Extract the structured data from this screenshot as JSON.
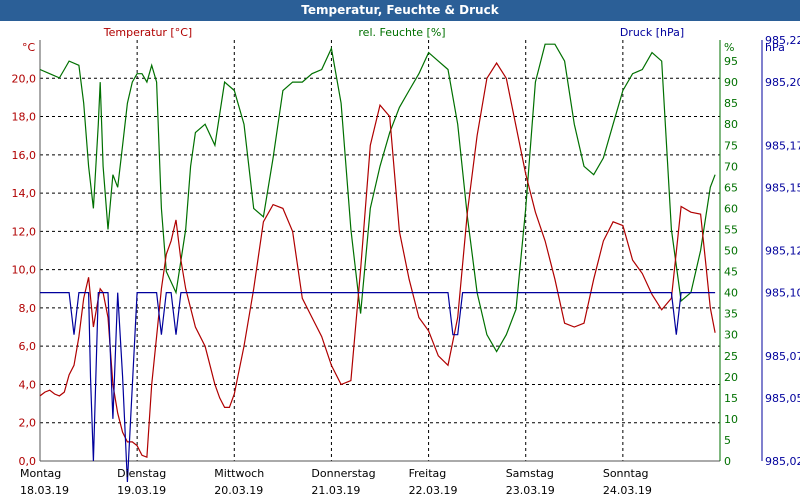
{
  "window": {
    "title": "Temperatur, Feuchte & Druck"
  },
  "chart_data": {
    "type": "line",
    "series_titles": {
      "temperature": "Temperatur [°C]",
      "humidity": "rel. Feuchte [%]",
      "pressure": "Druck [hPa]"
    },
    "units": {
      "left": "°C",
      "right1": "%",
      "right2": "hPa"
    },
    "colors": {
      "temperature": "#b00000",
      "humidity": "#007000",
      "pressure": "#00009c",
      "grid": "#000000"
    },
    "grid": true,
    "y_left": {
      "ticks": [
        "0,0",
        "2,0",
        "4,0",
        "6,0",
        "8,0",
        "10,0",
        "12,0",
        "14,0",
        "16,0",
        "18,0",
        "20,0"
      ],
      "range": [
        0,
        22
      ]
    },
    "y_right1": {
      "ticks": [
        "0",
        "5",
        "10",
        "15",
        "20",
        "25",
        "30",
        "35",
        "40",
        "45",
        "50",
        "55",
        "60",
        "65",
        "70",
        "75",
        "80",
        "85",
        "90",
        "95"
      ],
      "range": [
        0,
        100
      ]
    },
    "y_right2": {
      "ticks": [
        "985,02",
        "985,05",
        "985,07",
        "985,10",
        "985,12",
        "985,15",
        "985,17",
        "985,20",
        "985,22"
      ],
      "range": [
        985.02,
        985.22
      ]
    },
    "x_days": [
      {
        "day": "Montag",
        "date": "18.03.19"
      },
      {
        "day": "Dienstag",
        "date": "19.03.19"
      },
      {
        "day": "Mittwoch",
        "date": "20.03.19"
      },
      {
        "day": "Donnerstag",
        "date": "21.03.19"
      },
      {
        "day": "Freitag",
        "date": "22.03.19"
      },
      {
        "day": "Samstag",
        "date": "23.03.19"
      },
      {
        "day": "Sonntag",
        "date": "24.03.19"
      }
    ],
    "x_range_days": [
      0,
      7
    ],
    "temperature": {
      "x": [
        0,
        0.05,
        0.1,
        0.15,
        0.2,
        0.25,
        0.3,
        0.35,
        0.4,
        0.45,
        0.5,
        0.55,
        0.6,
        0.62,
        0.65,
        0.7,
        0.75,
        0.8,
        0.85,
        0.9,
        0.95,
        1.0,
        1.05,
        1.1,
        1.15,
        1.2,
        1.25,
        1.3,
        1.35,
        1.4,
        1.45,
        1.5,
        1.6,
        1.7,
        1.75,
        1.8,
        1.85,
        1.9,
        1.95,
        2.0,
        2.1,
        2.2,
        2.3,
        2.4,
        2.5,
        2.6,
        2.7,
        2.8,
        2.9,
        3.0,
        3.1,
        3.2,
        3.3,
        3.4,
        3.5,
        3.6,
        3.7,
        3.8,
        3.9,
        4.0,
        4.1,
        4.2,
        4.3,
        4.4,
        4.5,
        4.6,
        4.7,
        4.8,
        4.9,
        5.0,
        5.1,
        5.2,
        5.3,
        5.4,
        5.5,
        5.6,
        5.7,
        5.8,
        5.9,
        6.0,
        6.1,
        6.2,
        6.3,
        6.4,
        6.5,
        6.6,
        6.7,
        6.8,
        6.85,
        6.9,
        6.95
      ],
      "values": [
        3.4,
        3.6,
        3.7,
        3.5,
        3.4,
        3.6,
        4.5,
        5.0,
        6.5,
        8.5,
        9.6,
        7.0,
        8.5,
        9.0,
        8.8,
        7.5,
        4.0,
        2.5,
        1.5,
        1.0,
        1.0,
        0.8,
        0.3,
        0.2,
        4.0,
        6.5,
        9.0,
        10.8,
        11.5,
        12.6,
        10.5,
        9.0,
        7.0,
        6.0,
        5.0,
        4.0,
        3.3,
        2.8,
        2.8,
        3.5,
        6.0,
        9.0,
        12.5,
        13.4,
        13.2,
        12.0,
        8.5,
        7.5,
        6.5,
        5.0,
        4.0,
        4.2,
        10.0,
        16.5,
        18.6,
        18.0,
        12.0,
        9.5,
        7.5,
        6.8,
        5.5,
        5.0,
        7.5,
        13.0,
        17.0,
        20.0,
        20.8,
        20.0,
        17.5,
        15.0,
        13.0,
        11.5,
        9.5,
        7.2,
        7.0,
        7.2,
        9.5,
        11.5,
        12.5,
        12.3,
        10.5,
        9.8,
        8.7,
        7.9,
        8.5,
        13.3,
        13.0,
        12.9,
        10.5,
        8.0,
        6.7
      ]
    },
    "humidity": {
      "x": [
        0,
        0.1,
        0.2,
        0.25,
        0.3,
        0.4,
        0.45,
        0.5,
        0.55,
        0.6,
        0.62,
        0.65,
        0.7,
        0.75,
        0.8,
        0.85,
        0.9,
        0.95,
        1.0,
        1.05,
        1.1,
        1.15,
        1.2,
        1.25,
        1.3,
        1.4,
        1.5,
        1.55,
        1.6,
        1.7,
        1.8,
        1.9,
        2.0,
        2.1,
        2.2,
        2.3,
        2.4,
        2.5,
        2.6,
        2.7,
        2.8,
        2.9,
        3.0,
        3.1,
        3.2,
        3.3,
        3.4,
        3.5,
        3.6,
        3.7,
        3.8,
        3.9,
        4.0,
        4.1,
        4.2,
        4.3,
        4.4,
        4.5,
        4.6,
        4.7,
        4.8,
        4.9,
        5.0,
        5.1,
        5.2,
        5.3,
        5.4,
        5.5,
        5.6,
        5.7,
        5.8,
        5.9,
        6.0,
        6.1,
        6.2,
        6.3,
        6.4,
        6.5,
        6.6,
        6.7,
        6.8,
        6.9,
        6.95
      ],
      "values": [
        93,
        92,
        91,
        93,
        95,
        94,
        85,
        70,
        60,
        80,
        90,
        70,
        55,
        68,
        65,
        75,
        85,
        90,
        92,
        92,
        90,
        94,
        90,
        60,
        45,
        40,
        55,
        70,
        78,
        80,
        75,
        90,
        88,
        80,
        60,
        58,
        72,
        88,
        90,
        90,
        92,
        93,
        98,
        85,
        55,
        35,
        60,
        70,
        78,
        84,
        88,
        92,
        97,
        95,
        93,
        80,
        58,
        40,
        30,
        26,
        30,
        36,
        60,
        90,
        99,
        99,
        95,
        80,
        70,
        68,
        72,
        80,
        88,
        92,
        93,
        97,
        95,
        55,
        38,
        40,
        50,
        65,
        68
      ]
    },
    "pressure": {
      "x": [
        0,
        0.3,
        0.35,
        0.4,
        0.45,
        0.5,
        0.52,
        0.55,
        0.6,
        0.65,
        0.7,
        0.75,
        0.8,
        0.85,
        0.9,
        1.0,
        1.2,
        1.25,
        1.3,
        1.35,
        1.4,
        1.45,
        1.5,
        1.6,
        3.0,
        4.2,
        4.25,
        4.3,
        4.35,
        5.0,
        6.5,
        6.55,
        6.6,
        6.95
      ],
      "values": [
        985.1,
        985.1,
        985.08,
        985.1,
        985.1,
        985.1,
        985.06,
        985.02,
        985.1,
        985.1,
        985.1,
        985.04,
        985.1,
        985.06,
        985.01,
        985.1,
        985.1,
        985.08,
        985.1,
        985.1,
        985.08,
        985.1,
        985.1,
        985.1,
        985.1,
        985.1,
        985.08,
        985.08,
        985.1,
        985.1,
        985.1,
        985.08,
        985.1,
        985.1
      ]
    }
  }
}
